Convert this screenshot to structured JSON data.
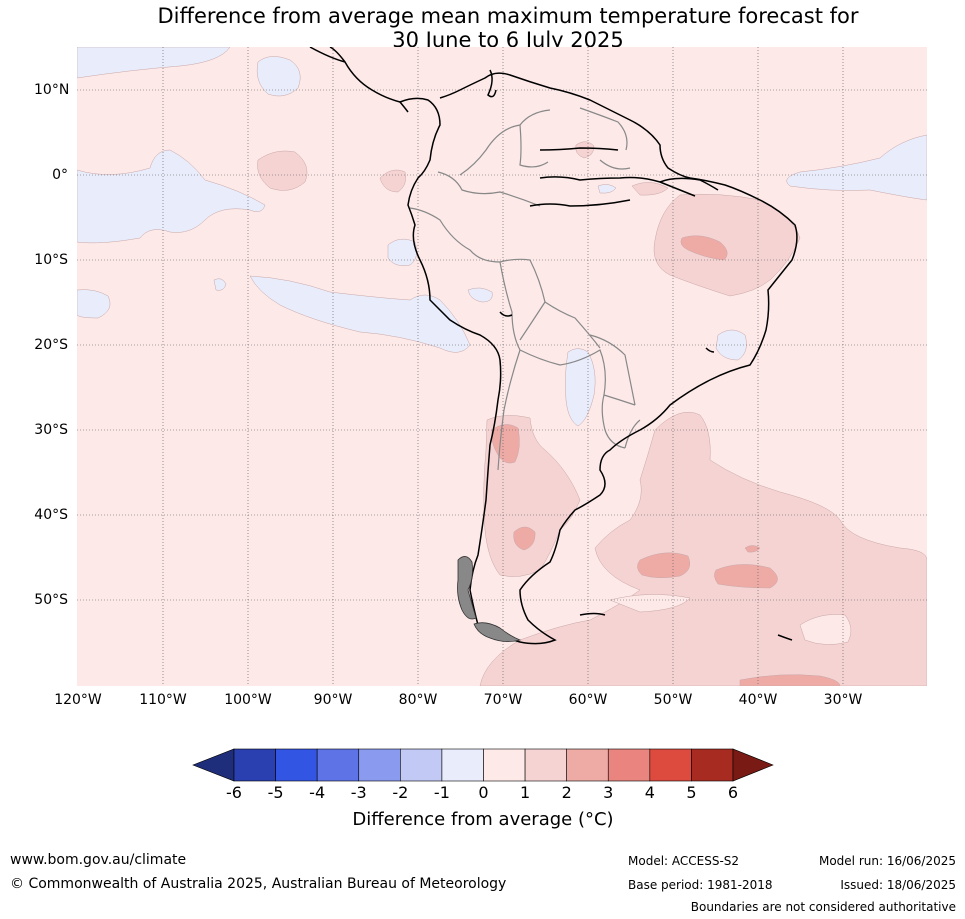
{
  "title_line1": "Difference from average mean maximum temperature forecast for",
  "title_line2": "30 June to 6 July 2025",
  "lat_labels": [
    "10°N",
    "0°",
    "10°S",
    "20°S",
    "30°S",
    "40°S",
    "50°S"
  ],
  "lon_labels": [
    "120°W",
    "110°W",
    "100°W",
    "90°W",
    "80°W",
    "70°W",
    "60°W",
    "50°W",
    "40°W",
    "30°W"
  ],
  "colorbar": {
    "ticks": [
      "-6",
      "-5",
      "-4",
      "-3",
      "-2",
      "-1",
      "0",
      "1",
      "2",
      "3",
      "4",
      "5",
      "6"
    ],
    "colors": [
      "#1f2e7a",
      "#2a40b0",
      "#3355e3",
      "#5e74e6",
      "#8a9bef",
      "#c2c9f5",
      "#e8ecfb",
      "#fce9e8",
      "#f5d3d3",
      "#eeaba6",
      "#e9857e",
      "#dd4b3e",
      "#a82b22",
      "#7a1a14"
    ],
    "label": "Difference from average (°C)"
  },
  "footer": {
    "url": "www.bom.gov.au/climate",
    "copyright": "© Commonwealth of Australia 2025, Australian Bureau of Meteorology",
    "model": "Model: ACCESS-S2",
    "base_period": "Base period: 1981-2018",
    "model_run": "Model run: 16/06/2025",
    "issued": "Issued: 18/06/2025",
    "disclaimer": "Boundaries are not considered authoritative"
  }
}
